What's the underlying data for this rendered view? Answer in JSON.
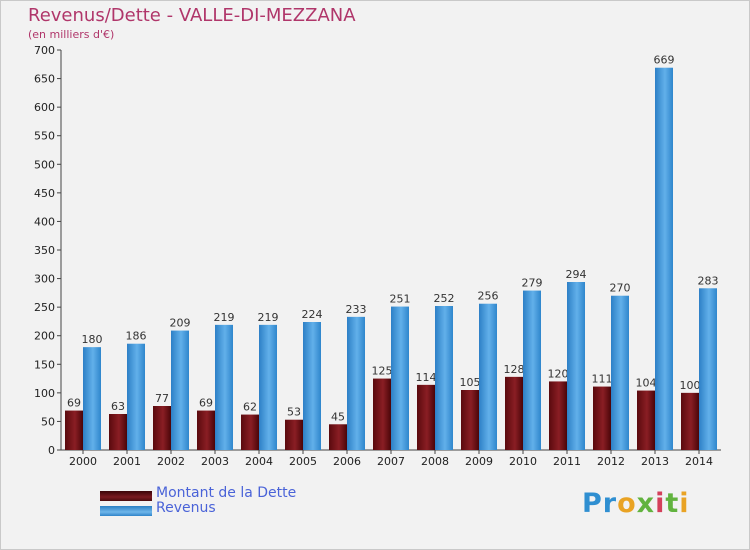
{
  "header": {
    "title": "Revenus/Dette - VALLE-DI-MEZZANA",
    "subtitle": "(en milliers d'€)"
  },
  "colors": {
    "dette": "#6b1016",
    "revenus": "#3f97da",
    "axis_text": "#222222",
    "title": "#b0366a"
  },
  "legend": {
    "items": [
      {
        "label": "Montant de la Dette"
      },
      {
        "label": "Revenus"
      }
    ]
  },
  "logo": {
    "text": "Proxiti"
  },
  "chart_data": {
    "type": "bar",
    "title": "Revenus/Dette - VALLE-DI-MEZZANA",
    "subtitle": "(en milliers d'€)",
    "categories": [
      "2000",
      "2001",
      "2002",
      "2003",
      "2004",
      "2005",
      "2006",
      "2007",
      "2008",
      "2009",
      "2010",
      "2011",
      "2012",
      "2013",
      "2014"
    ],
    "series": [
      {
        "name": "Montant de la Dette",
        "values": [
          69,
          63,
          77,
          69,
          62,
          53,
          45,
          125,
          114,
          105,
          128,
          120,
          111,
          104,
          100
        ]
      },
      {
        "name": "Revenus",
        "values": [
          180,
          186,
          209,
          219,
          219,
          224,
          233,
          251,
          252,
          256,
          279,
          294,
          270,
          669,
          283
        ]
      }
    ],
    "ylim": [
      0,
      700
    ],
    "yticks": [
      0,
      50,
      100,
      150,
      200,
      250,
      300,
      350,
      400,
      450,
      500,
      550,
      600,
      650,
      700
    ],
    "grid": false,
    "legend_position": "bottom-left"
  }
}
